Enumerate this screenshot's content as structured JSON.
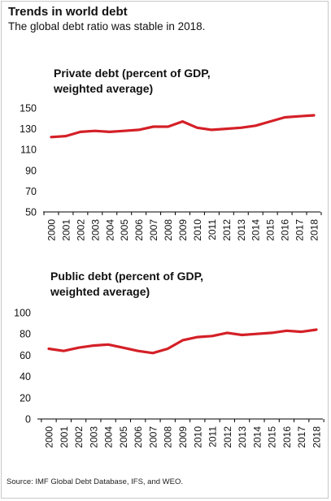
{
  "header": {
    "title": "Trends in world debt",
    "subtitle": "The global debt ratio was stable in 2018."
  },
  "source": "Source: IMF Global Debt Database, IFS, and WEO.",
  "colors": {
    "line": "#d42027",
    "axis": "#000000"
  },
  "chart_data": [
    {
      "type": "line",
      "title_lines": [
        "Private debt (percent of GDP,",
        "weighted average)"
      ],
      "x": [
        "2000",
        "2001",
        "2002",
        "2003",
        "2004",
        "2005",
        "2006",
        "2007",
        "2008",
        "2009",
        "2010",
        "2011",
        "2012",
        "2013",
        "2014",
        "2015",
        "2016",
        "2017",
        "2018"
      ],
      "series": [
        {
          "values": [
            122,
            123,
            127,
            128,
            127,
            128,
            129,
            132,
            132,
            137,
            131,
            129,
            130,
            131,
            133,
            137,
            141,
            142,
            143
          ]
        }
      ],
      "ylim": [
        50,
        150
      ],
      "yticks": [
        50,
        70,
        90,
        110,
        130,
        150
      ],
      "grid": false
    },
    {
      "type": "line",
      "title_lines": [
        "Public debt (percent of GDP,",
        "weighted average)"
      ],
      "x": [
        "2000",
        "2001",
        "2002",
        "2003",
        "2004",
        "2005",
        "2006",
        "2007",
        "2008",
        "2009",
        "2010",
        "2011",
        "2012",
        "2013",
        "2014",
        "2015",
        "2016",
        "2017",
        "2018"
      ],
      "series": [
        {
          "values": [
            66,
            64,
            67,
            69,
            70,
            67,
            64,
            62,
            66,
            74,
            77,
            78,
            81,
            79,
            80,
            81,
            83,
            82,
            84
          ]
        }
      ],
      "ylim": [
        0,
        100
      ],
      "yticks": [
        0,
        20,
        40,
        60,
        80,
        100
      ],
      "grid": false
    }
  ]
}
